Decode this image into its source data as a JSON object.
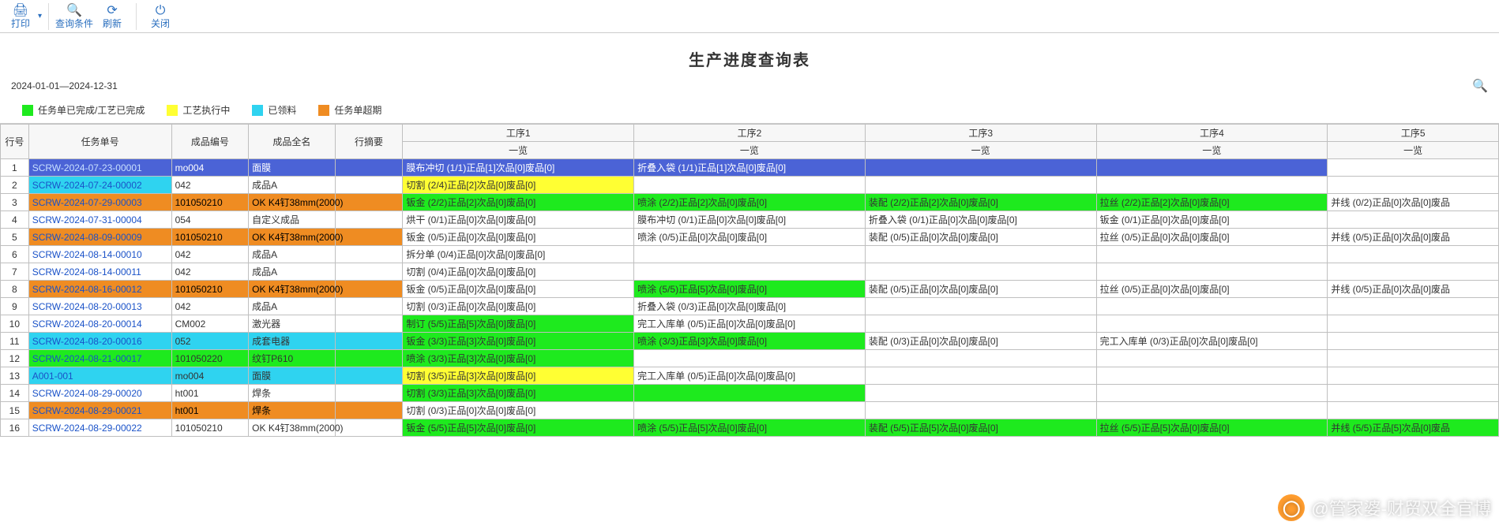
{
  "toolbar": {
    "print": {
      "icon": "🖨",
      "label": "打印"
    },
    "query": {
      "icon": "🔍",
      "label": "查询条件"
    },
    "refresh": {
      "icon": "⟳",
      "label": "刷新"
    },
    "close": {
      "icon": "⏻",
      "label": "关闭"
    }
  },
  "title": "生产进度查询表",
  "dateRange": "2024-01-01—2024-12-31",
  "legend": [
    {
      "color": "#1eea1e",
      "label": "任务单已完成/工艺已完成"
    },
    {
      "color": "#ffff33",
      "label": "工艺执行中"
    },
    {
      "color": "#2fd3f0",
      "label": "已领料"
    },
    {
      "color": "#ef8c22",
      "label": "任务单超期"
    }
  ],
  "headers": {
    "row": "行号",
    "task": "任务单号",
    "prodCode": "成品编号",
    "prodName": "成品全名",
    "summary": "行摘要",
    "proc": [
      "工序1",
      "工序2",
      "工序3",
      "工序4",
      "工序5"
    ],
    "sub": "一览"
  },
  "colors": {
    "green": "#1eea1e",
    "yellow": "#ffff33",
    "orange": "#ef8c22",
    "cyan": "#2fd3f0",
    "blue": "#4b63d6",
    "border": "#bfbfbf",
    "headerBg": "#f7f7f7",
    "link": "#1a52c8"
  },
  "rows": [
    {
      "n": 1,
      "task": "SCRW-2024-07-23-00001",
      "taskBg": "blue",
      "code": "mo004",
      "codeBg": "blue",
      "name": "面膜",
      "nameBg": "blue",
      "sumBg": "blue",
      "p": [
        {
          "t": "膜布冲切 (1/1)正品[1]次品[0]废品[0]",
          "bg": "blue"
        },
        {
          "t": "折叠入袋 (1/1)正品[1]次品[0]废品[0]",
          "bg": "blue"
        },
        {
          "t": "",
          "bg": "blue"
        },
        {
          "t": "",
          "bg": "blue"
        },
        {
          "t": "",
          "bg": "none"
        }
      ]
    },
    {
      "n": 2,
      "task": "SCRW-2024-07-24-00002",
      "taskBg": "cyan",
      "code": "042",
      "name": "成品A",
      "p": [
        {
          "t": "切割 (2/4)正品[2]次品[0]废品[0]",
          "bg": "yellow"
        },
        {
          "t": "",
          "bg": "none"
        },
        {
          "t": "",
          "bg": "none"
        },
        {
          "t": "",
          "bg": "none"
        },
        {
          "t": "",
          "bg": "none"
        }
      ]
    },
    {
      "n": 3,
      "task": "SCRW-2024-07-29-00003",
      "taskBg": "orange",
      "code": "101050210",
      "codeBg": "orange",
      "name": "OK K4钉38mm(2000)",
      "nameBg": "orange",
      "sumBg": "orange",
      "p": [
        {
          "t": "钣金 (2/2)正品[2]次品[0]废品[0]",
          "bg": "green"
        },
        {
          "t": "喷涂 (2/2)正品[2]次品[0]废品[0]",
          "bg": "green"
        },
        {
          "t": "装配 (2/2)正品[2]次品[0]废品[0]",
          "bg": "green"
        },
        {
          "t": "拉丝 (2/2)正品[2]次品[0]废品[0]",
          "bg": "green"
        },
        {
          "t": "并线 (0/2)正品[0]次品[0]废品",
          "bg": "none"
        }
      ]
    },
    {
      "n": 4,
      "task": "SCRW-2024-07-31-00004",
      "code": "054",
      "name": "自定义成品",
      "p": [
        {
          "t": "烘干 (0/1)正品[0]次品[0]废品[0]",
          "bg": "none"
        },
        {
          "t": "膜布冲切 (0/1)正品[0]次品[0]废品[0]",
          "bg": "none"
        },
        {
          "t": "折叠入袋 (0/1)正品[0]次品[0]废品[0]",
          "bg": "none"
        },
        {
          "t": "钣金 (0/1)正品[0]次品[0]废品[0]",
          "bg": "none"
        },
        {
          "t": "",
          "bg": "none"
        }
      ]
    },
    {
      "n": 5,
      "task": "SCRW-2024-08-09-00009",
      "taskBg": "orange",
      "code": "101050210",
      "codeBg": "orange",
      "name": "OK K4钉38mm(2000)",
      "nameBg": "orange",
      "sumBg": "orange",
      "p": [
        {
          "t": "钣金 (0/5)正品[0]次品[0]废品[0]",
          "bg": "none"
        },
        {
          "t": "喷涂 (0/5)正品[0]次品[0]废品[0]",
          "bg": "none"
        },
        {
          "t": "装配 (0/5)正品[0]次品[0]废品[0]",
          "bg": "none"
        },
        {
          "t": "拉丝 (0/5)正品[0]次品[0]废品[0]",
          "bg": "none"
        },
        {
          "t": "并线 (0/5)正品[0]次品[0]废品",
          "bg": "none"
        }
      ]
    },
    {
      "n": 6,
      "task": "SCRW-2024-08-14-00010",
      "code": "042",
      "name": "成品A",
      "p": [
        {
          "t": "拆分单 (0/4)正品[0]次品[0]废品[0]",
          "bg": "none"
        },
        {
          "t": "",
          "bg": "none"
        },
        {
          "t": "",
          "bg": "none"
        },
        {
          "t": "",
          "bg": "none"
        },
        {
          "t": "",
          "bg": "none"
        }
      ]
    },
    {
      "n": 7,
      "task": "SCRW-2024-08-14-00011",
      "code": "042",
      "name": "成品A",
      "p": [
        {
          "t": "切割 (0/4)正品[0]次品[0]废品[0]",
          "bg": "none"
        },
        {
          "t": "",
          "bg": "none"
        },
        {
          "t": "",
          "bg": "none"
        },
        {
          "t": "",
          "bg": "none"
        },
        {
          "t": "",
          "bg": "none"
        }
      ]
    },
    {
      "n": 8,
      "task": "SCRW-2024-08-16-00012",
      "taskBg": "orange",
      "code": "101050210",
      "codeBg": "orange",
      "name": "OK K4钉38mm(2000)",
      "nameBg": "orange",
      "sumBg": "orange",
      "p": [
        {
          "t": "钣金 (0/5)正品[0]次品[0]废品[0]",
          "bg": "none"
        },
        {
          "t": "喷涂 (5/5)正品[5]次品[0]废品[0]",
          "bg": "green"
        },
        {
          "t": "装配 (0/5)正品[0]次品[0]废品[0]",
          "bg": "none"
        },
        {
          "t": "拉丝 (0/5)正品[0]次品[0]废品[0]",
          "bg": "none"
        },
        {
          "t": "并线 (0/5)正品[0]次品[0]废品",
          "bg": "none"
        }
      ]
    },
    {
      "n": 9,
      "task": "SCRW-2024-08-20-00013",
      "code": "042",
      "name": "成品A",
      "p": [
        {
          "t": "切割 (0/3)正品[0]次品[0]废品[0]",
          "bg": "none"
        },
        {
          "t": "折叠入袋 (0/3)正品[0]次品[0]废品[0]",
          "bg": "none"
        },
        {
          "t": "",
          "bg": "none"
        },
        {
          "t": "",
          "bg": "none"
        },
        {
          "t": "",
          "bg": "none"
        }
      ]
    },
    {
      "n": 10,
      "task": "SCRW-2024-08-20-00014",
      "code": "CM002",
      "name": "激光器",
      "p": [
        {
          "t": "制订 (5/5)正品[5]次品[0]废品[0]",
          "bg": "green"
        },
        {
          "t": "完工入库单 (0/5)正品[0]次品[0]废品[0]",
          "bg": "none"
        },
        {
          "t": "",
          "bg": "none"
        },
        {
          "t": "",
          "bg": "none"
        },
        {
          "t": "",
          "bg": "none"
        }
      ]
    },
    {
      "n": 11,
      "task": "SCRW-2024-08-20-00016",
      "taskBg": "cyan",
      "code": "052",
      "codeBg": "cyan",
      "name": "成套电器",
      "nameBg": "cyan",
      "sumBg": "cyan",
      "p": [
        {
          "t": "钣金 (3/3)正品[3]次品[0]废品[0]",
          "bg": "green"
        },
        {
          "t": "喷涂 (3/3)正品[3]次品[0]废品[0]",
          "bg": "green"
        },
        {
          "t": "装配 (0/3)正品[0]次品[0]废品[0]",
          "bg": "none"
        },
        {
          "t": "完工入库单 (0/3)正品[0]次品[0]废品[0]",
          "bg": "none"
        },
        {
          "t": "",
          "bg": "none"
        }
      ]
    },
    {
      "n": 12,
      "task": "SCRW-2024-08-21-00017",
      "taskBg": "green",
      "code": "101050220",
      "codeBg": "green",
      "name": "纹钉P610",
      "nameBg": "green",
      "sumBg": "green",
      "p": [
        {
          "t": "喷涂 (3/3)正品[3]次品[0]废品[0]",
          "bg": "green"
        },
        {
          "t": "",
          "bg": "none"
        },
        {
          "t": "",
          "bg": "none"
        },
        {
          "t": "",
          "bg": "none"
        },
        {
          "t": "",
          "bg": "none"
        }
      ]
    },
    {
      "n": 13,
      "task": "A001-001",
      "taskBg": "cyan",
      "code": "mo004",
      "codeBg": "cyan",
      "name": "面膜",
      "nameBg": "cyan",
      "sumBg": "cyan",
      "p": [
        {
          "t": "切割 (3/5)正品[3]次品[0]废品[0]",
          "bg": "yellow"
        },
        {
          "t": "完工入库单 (0/5)正品[0]次品[0]废品[0]",
          "bg": "none"
        },
        {
          "t": "",
          "bg": "none"
        },
        {
          "t": "",
          "bg": "none"
        },
        {
          "t": "",
          "bg": "none"
        }
      ]
    },
    {
      "n": 14,
      "task": "SCRW-2024-08-29-00020",
      "code": "ht001",
      "name": "焊条",
      "p": [
        {
          "t": "切割 (3/3)正品[3]次品[0]废品[0]",
          "bg": "green"
        },
        {
          "t": "",
          "bg": "green"
        },
        {
          "t": "",
          "bg": "none"
        },
        {
          "t": "",
          "bg": "none"
        },
        {
          "t": "",
          "bg": "none"
        }
      ]
    },
    {
      "n": 15,
      "task": "SCRW-2024-08-29-00021",
      "taskBg": "orange",
      "code": "ht001",
      "codeBg": "orange",
      "name": "焊条",
      "nameBg": "orange",
      "sumBg": "orange",
      "p": [
        {
          "t": "切割 (0/3)正品[0]次品[0]废品[0]",
          "bg": "none"
        },
        {
          "t": "",
          "bg": "none"
        },
        {
          "t": "",
          "bg": "none"
        },
        {
          "t": "",
          "bg": "none"
        },
        {
          "t": "",
          "bg": "none"
        }
      ]
    },
    {
      "n": 16,
      "task": "SCRW-2024-08-29-00022",
      "code": "101050210",
      "name": "OK K4钉38mm(2000)",
      "p": [
        {
          "t": "钣金 (5/5)正品[5]次品[0]废品[0]",
          "bg": "green"
        },
        {
          "t": "喷涂 (5/5)正品[5]次品[0]废品[0]",
          "bg": "green"
        },
        {
          "t": "装配 (5/5)正品[5]次品[0]废品[0]",
          "bg": "green"
        },
        {
          "t": "拉丝 (5/5)正品[5]次品[0]废品[0]",
          "bg": "green"
        },
        {
          "t": "并线 (5/5)正品[5]次品[0]废品",
          "bg": "green"
        }
      ]
    }
  ],
  "watermark": "@管家婆-财贸双全官博"
}
